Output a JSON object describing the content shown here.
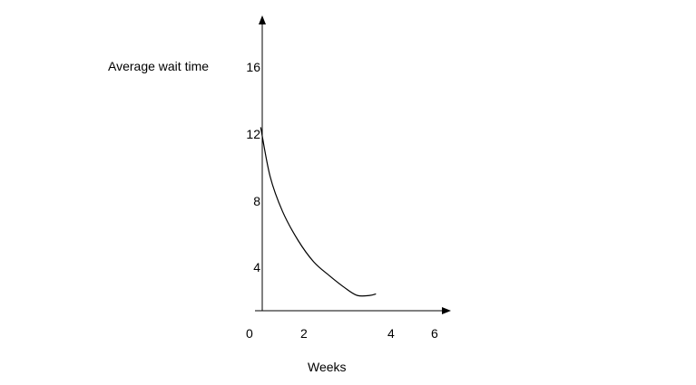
{
  "chart_data": {
    "type": "line",
    "ylabel": "Average wait time",
    "xlabel": "Weeks",
    "x_ticks": [
      "0",
      "2",
      "4",
      "6"
    ],
    "y_ticks": [
      "4",
      "8",
      "12",
      "16"
    ],
    "xlim": [
      0,
      6
    ],
    "ylim": [
      0,
      16
    ],
    "grid": false,
    "series": [
      {
        "x": [
          0.3,
          0.6,
          1.0,
          1.5,
          2.0,
          2.5,
          3.0,
          3.4,
          3.8,
          4.0
        ],
        "y": [
          12.0,
          8.8,
          6.5,
          4.6,
          3.2,
          2.3,
          1.5,
          1.0,
          1.0,
          1.1
        ]
      }
    ]
  }
}
